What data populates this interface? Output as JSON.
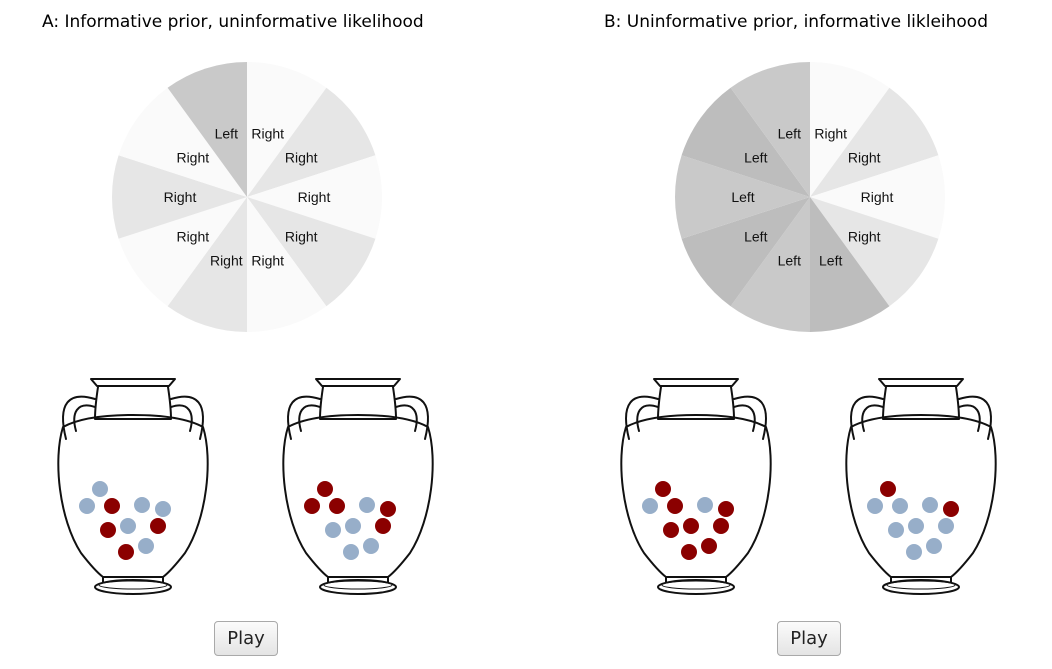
{
  "panels": [
    {
      "title": "A: Informative prior, uninformative likelihood",
      "play_label": "Play",
      "wheel": [
        {
          "label": "Right",
          "color": "#fafafa"
        },
        {
          "label": "Right",
          "color": "#e6e6e6"
        },
        {
          "label": "Right",
          "color": "#fafafa"
        },
        {
          "label": "Right",
          "color": "#e6e6e6"
        },
        {
          "label": "Right",
          "color": "#fafafa"
        },
        {
          "label": "Right",
          "color": "#e6e6e6"
        },
        {
          "label": "Right",
          "color": "#fafafa"
        },
        {
          "label": "Right",
          "color": "#e6e6e6"
        },
        {
          "label": "Right",
          "color": "#fafafa"
        },
        {
          "label": "Left",
          "color": "#c9c9c9"
        }
      ],
      "urns": [
        {
          "balls": [
            "blue",
            "blue",
            "red",
            "blue",
            "blue",
            "blue",
            "red",
            "red",
            "blue",
            "red"
          ]
        },
        {
          "balls": [
            "red",
            "red",
            "red",
            "blue",
            "red",
            "blue",
            "red",
            "blue",
            "blue",
            "blue"
          ]
        }
      ]
    },
    {
      "title": "B: Uninformative prior, informative likleihood",
      "play_label": "Play",
      "wheel": [
        {
          "label": "Right",
          "color": "#fafafa"
        },
        {
          "label": "Right",
          "color": "#e6e6e6"
        },
        {
          "label": "Right",
          "color": "#fafafa"
        },
        {
          "label": "Right",
          "color": "#e6e6e6"
        },
        {
          "label": "Left",
          "color": "#bdbdbd"
        },
        {
          "label": "Left",
          "color": "#c9c9c9"
        },
        {
          "label": "Left",
          "color": "#bdbdbd"
        },
        {
          "label": "Left",
          "color": "#c9c9c9"
        },
        {
          "label": "Left",
          "color": "#bdbdbd"
        },
        {
          "label": "Left",
          "color": "#c9c9c9"
        }
      ],
      "urns": [
        {
          "balls": [
            "red",
            "blue",
            "red",
            "blue",
            "red",
            "red",
            "red",
            "red",
            "red",
            "red"
          ]
        },
        {
          "balls": [
            "red",
            "blue",
            "blue",
            "blue",
            "red",
            "blue",
            "blue",
            "blue",
            "blue",
            "blue"
          ]
        }
      ]
    }
  ],
  "colors": {
    "red_ball": "#8b0000",
    "blue_ball": "#97aec9",
    "outline": "#111111"
  },
  "icons": {
    "urn": "amphora-urn-icon",
    "wheel": "spinner-wheel-icon"
  }
}
